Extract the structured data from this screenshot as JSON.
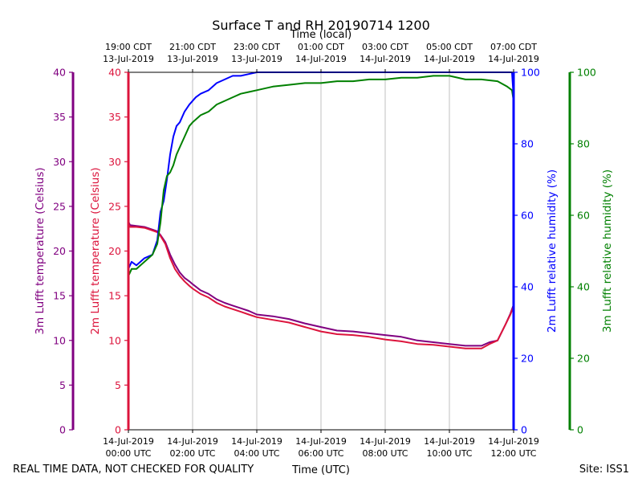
{
  "chart_data": {
    "type": "line",
    "title": "Surface T and RH 20190714 1200",
    "top_axis_label": "Time (local)",
    "xlabel": "Time (UTC)",
    "footer_left": "REAL TIME DATA, NOT CHECKED FOR QUALITY",
    "footer_right": "Site: ISS1",
    "x_range_hours_utc": [
      0,
      12
    ],
    "bottom_ticks": [
      {
        "hour": 0,
        "line1": "14-Jul-2019",
        "line2": "00:00 UTC"
      },
      {
        "hour": 2,
        "line1": "14-Jul-2019",
        "line2": "02:00 UTC"
      },
      {
        "hour": 4,
        "line1": "14-Jul-2019",
        "line2": "04:00 UTC"
      },
      {
        "hour": 6,
        "line1": "14-Jul-2019",
        "line2": "06:00 UTC"
      },
      {
        "hour": 8,
        "line1": "14-Jul-2019",
        "line2": "08:00 UTC"
      },
      {
        "hour": 10,
        "line1": "14-Jul-2019",
        "line2": "10:00 UTC"
      },
      {
        "hour": 12,
        "line1": "14-Jul-2019",
        "line2": "12:00 UTC"
      }
    ],
    "top_ticks": [
      {
        "hour": 0,
        "line1": "19:00 CDT",
        "line2": "13-Jul-2019"
      },
      {
        "hour": 2,
        "line1": "21:00 CDT",
        "line2": "13-Jul-2019"
      },
      {
        "hour": 4,
        "line1": "23:00 CDT",
        "line2": "13-Jul-2019"
      },
      {
        "hour": 6,
        "line1": "01:00 CDT",
        "line2": "14-Jul-2019"
      },
      {
        "hour": 8,
        "line1": "03:00 CDT",
        "line2": "14-Jul-2019"
      },
      {
        "hour": 10,
        "line1": "05:00 CDT",
        "line2": "14-Jul-2019"
      },
      {
        "hour": 12,
        "line1": "07:00 CDT",
        "line2": "14-Jul-2019"
      }
    ],
    "axes": {
      "t3m": {
        "label": "3m Lufft temperature (Celsius)",
        "color": "#800080",
        "range": [
          0,
          40
        ],
        "ticks": [
          0,
          5,
          10,
          15,
          20,
          25,
          30,
          35,
          40
        ]
      },
      "t2m": {
        "label": "2m Lufft temperature (Celsius)",
        "color": "#dc143c",
        "range": [
          0,
          40
        ],
        "ticks": [
          0,
          5,
          10,
          15,
          20,
          25,
          30,
          35,
          40
        ]
      },
      "rh2m": {
        "label": "2m Lufft relative humidity (%)",
        "color": "#0000ff",
        "range": [
          0,
          100
        ],
        "ticks": [
          0,
          20,
          40,
          60,
          80,
          100
        ]
      },
      "rh3m": {
        "label": "3m Lufft relative humidity (%)",
        "color": "#008000",
        "range": [
          0,
          100
        ],
        "ticks": [
          0,
          20,
          40,
          60,
          80,
          100
        ]
      }
    },
    "series": [
      {
        "name": "3m Lufft temperature",
        "axis": "t3m",
        "color": "#800080",
        "x": [
          0,
          0.05,
          0.25,
          0.5,
          0.75,
          0.9,
          1.0,
          1.15,
          1.3,
          1.45,
          1.6,
          1.75,
          1.9,
          2.0,
          2.25,
          2.5,
          2.75,
          3.0,
          3.25,
          3.5,
          3.75,
          4.0,
          4.5,
          5.0,
          5.5,
          6.0,
          6.5,
          7.0,
          7.5,
          8.0,
          8.5,
          9.0,
          9.5,
          10.0,
          10.5,
          11.0,
          11.25,
          11.5,
          11.75,
          11.9,
          12.0
        ],
        "values": [
          23.3,
          22.9,
          22.8,
          22.7,
          22.4,
          22.2,
          21.8,
          21.0,
          19.6,
          18.5,
          17.6,
          17.0,
          16.6,
          16.3,
          15.6,
          15.2,
          14.6,
          14.2,
          13.9,
          13.6,
          13.3,
          12.9,
          12.7,
          12.4,
          11.9,
          11.5,
          11.1,
          11.0,
          10.8,
          10.6,
          10.4,
          10.0,
          9.8,
          9.6,
          9.4,
          9.4,
          9.8,
          10.0,
          11.8,
          13.0,
          14.0
        ]
      },
      {
        "name": "2m Lufft temperature",
        "axis": "t2m",
        "color": "#dc143c",
        "x": [
          0,
          0.05,
          0.25,
          0.5,
          0.75,
          0.9,
          1.0,
          1.15,
          1.3,
          1.45,
          1.6,
          1.75,
          1.9,
          2.0,
          2.25,
          2.5,
          2.75,
          3.0,
          3.25,
          3.5,
          3.75,
          4.0,
          4.5,
          5.0,
          5.5,
          6.0,
          6.5,
          7.0,
          7.5,
          8.0,
          8.5,
          9.0,
          9.5,
          10.0,
          10.5,
          11.0,
          11.25,
          11.5,
          11.75,
          11.9,
          12.0
        ],
        "values": [
          23.0,
          22.7,
          22.7,
          22.6,
          22.3,
          22.1,
          21.7,
          20.8,
          19.2,
          18.0,
          17.2,
          16.6,
          16.1,
          15.8,
          15.2,
          14.8,
          14.2,
          13.8,
          13.5,
          13.2,
          12.9,
          12.6,
          12.3,
          12.0,
          11.5,
          11.0,
          10.7,
          10.6,
          10.4,
          10.1,
          9.9,
          9.6,
          9.5,
          9.3,
          9.1,
          9.1,
          9.6,
          10.0,
          11.8,
          12.9,
          13.8
        ]
      },
      {
        "name": "2m Lufft relative humidity",
        "axis": "rh2m",
        "color": "#0000ff",
        "x": [
          0,
          0.1,
          0.25,
          0.5,
          0.75,
          0.9,
          1.0,
          1.1,
          1.2,
          1.3,
          1.4,
          1.5,
          1.6,
          1.75,
          1.9,
          2.0,
          2.1,
          2.25,
          2.5,
          2.75,
          3.0,
          3.25,
          3.5,
          3.75,
          4.0,
          4.5,
          5.0,
          5.5,
          6.0,
          6.5,
          7.0,
          7.5,
          8.0,
          8.5,
          9.0,
          9.5,
          10.0,
          10.5,
          11.0,
          11.5,
          11.8,
          11.95,
          12.0
        ],
        "values": [
          45,
          47,
          46,
          48,
          49,
          53,
          61,
          64,
          70,
          77,
          82,
          85,
          86,
          89,
          91,
          92,
          93,
          94,
          95,
          97,
          98,
          99,
          99,
          99.5,
          100,
          100,
          100,
          100,
          100,
          100,
          100,
          100,
          100,
          100,
          100,
          100,
          100,
          100,
          100,
          100,
          100,
          100,
          93
        ]
      },
      {
        "name": "3m Lufft relative humidity",
        "axis": "rh3m",
        "color": "#008000",
        "x": [
          0,
          0.1,
          0.25,
          0.5,
          0.75,
          0.9,
          1.0,
          1.1,
          1.2,
          1.3,
          1.4,
          1.5,
          1.6,
          1.75,
          1.9,
          2.0,
          2.25,
          2.5,
          2.75,
          3.0,
          3.25,
          3.5,
          3.75,
          4.0,
          4.5,
          5.0,
          5.5,
          6.0,
          6.5,
          7.0,
          7.5,
          8.0,
          8.5,
          9.0,
          9.5,
          10.0,
          10.5,
          11.0,
          11.5,
          11.8,
          11.95,
          12.0
        ],
        "values": [
          43,
          45,
          45,
          47,
          49,
          52,
          58,
          67,
          71,
          72,
          74,
          77,
          79,
          82,
          85,
          86,
          88,
          89,
          91,
          92,
          93,
          94,
          94.5,
          95,
          96,
          96.5,
          97,
          97,
          97.5,
          97.5,
          98,
          98,
          98.5,
          98.5,
          99,
          99,
          98,
          98,
          97.5,
          96,
          95,
          92
        ]
      }
    ]
  }
}
